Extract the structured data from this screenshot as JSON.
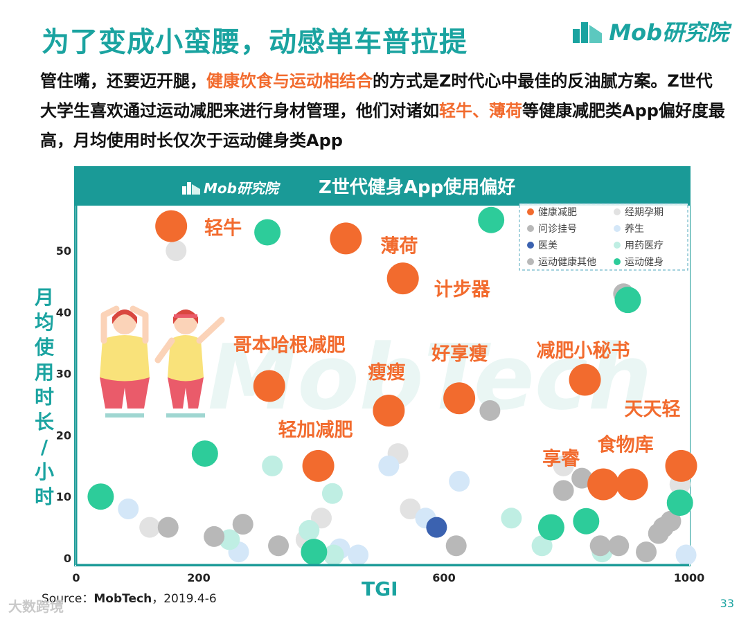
{
  "page": {
    "title": "为了变成小蛮腰，动感单车普拉提",
    "logo_text": "Mob研究院",
    "desc_parts": [
      {
        "text": "管住嘴，还要迈开腿，",
        "highlight": false
      },
      {
        "text": "健康饮食与运动相结合",
        "highlight": true
      },
      {
        "text": "的方式是Z时代心中最佳的反油腻方案。Z世代大学生喜欢通过运动减肥来进行身材管理，他们对诸如",
        "highlight": false
      },
      {
        "text": "轻牛、薄荷",
        "highlight": true
      },
      {
        "text": "等健康减肥类App偏好度最高，月均使用时长仅次于运动健身类App",
        "highlight": false
      }
    ],
    "source_label": "Source：",
    "source_name": "MobTech",
    "source_date": "，2019.4-6",
    "page_number": "33",
    "corner_watermark": "大数跨境",
    "chart_watermark": "MobTech"
  },
  "colors": {
    "teal": "#1a9a97",
    "orange": "#f26b2e",
    "gray": "#b8b8b8",
    "lightgray": "#e2e2e2",
    "lightblue": "#d4e7f8",
    "darkblue": "#3b62b0",
    "mint": "#bfeee3",
    "green": "#2dcc9a"
  },
  "chart_data": {
    "type": "scatter",
    "title": "Z世代健身App使用偏好",
    "header_logo": "Mob研究院",
    "xlabel": "TGI",
    "ylabel": "月均使用时长/小时",
    "xlim": [
      0,
      1000
    ],
    "ylim": [
      0,
      57
    ],
    "xticks": [
      0,
      200,
      400,
      600,
      800,
      1000
    ],
    "xtick_labels": [
      "0",
      "200",
      "",
      "600",
      "",
      "1000"
    ],
    "yticks": [
      0,
      10,
      20,
      30,
      40,
      50
    ],
    "legend": [
      {
        "name": "健康减肥",
        "color": "#f26b2e"
      },
      {
        "name": "经期孕期",
        "color": "#e2e2e2"
      },
      {
        "name": "问诊挂号",
        "color": "#b8b8b8"
      },
      {
        "name": "养生",
        "color": "#d4e7f8"
      },
      {
        "name": "医美",
        "color": "#3b62b0"
      },
      {
        "name": "用药医疗",
        "color": "#bfeee3"
      },
      {
        "name": "运动健康其他",
        "color": "#b8b8b8"
      },
      {
        "name": "运动健身",
        "color": "#2dcc9a"
      }
    ],
    "labeled_points": [
      {
        "name": "轻牛",
        "x": 155,
        "y": 54
      },
      {
        "name": "薄荷",
        "x": 440,
        "y": 52
      },
      {
        "name": "计步器",
        "x": 533,
        "y": 45.5
      },
      {
        "name": "减肥小秘书",
        "x": 830,
        "y": 29
      },
      {
        "name": "哥本哈根减肥",
        "x": 315,
        "y": 28
      },
      {
        "name": "瘦瘦",
        "x": 510,
        "y": 24
      },
      {
        "name": "好享瘦",
        "x": 625,
        "y": 26
      },
      {
        "name": "天天轻",
        "x": 987,
        "y": 15
      },
      {
        "name": "轻加减肥",
        "x": 395,
        "y": 15
      },
      {
        "name": "享睿",
        "x": 860,
        "y": 12
      },
      {
        "name": "食物库",
        "x": 907,
        "y": 12
      }
    ],
    "points": [
      {
        "category": "健康减肥",
        "x": 155,
        "y": 54
      },
      {
        "category": "健康减肥",
        "x": 440,
        "y": 52
      },
      {
        "category": "健康减肥",
        "x": 533,
        "y": 45.5
      },
      {
        "category": "健康减肥",
        "x": 830,
        "y": 29
      },
      {
        "category": "健康减肥",
        "x": 315,
        "y": 28
      },
      {
        "category": "健康减肥",
        "x": 510,
        "y": 24
      },
      {
        "category": "健康减肥",
        "x": 625,
        "y": 26
      },
      {
        "category": "健康减肥",
        "x": 987,
        "y": 15
      },
      {
        "category": "健康减肥",
        "x": 395,
        "y": 15
      },
      {
        "category": "健康减肥",
        "x": 860,
        "y": 12
      },
      {
        "category": "健康减肥",
        "x": 907,
        "y": 12
      },
      {
        "category": "经期孕期",
        "x": 163,
        "y": 50
      },
      {
        "category": "经期孕期",
        "x": 525,
        "y": 17
      },
      {
        "category": "经期孕期",
        "x": 795,
        "y": 15
      },
      {
        "category": "经期孕期",
        "x": 985,
        "y": 12
      },
      {
        "category": "经期孕期",
        "x": 400,
        "y": 6.5
      },
      {
        "category": "经期孕期",
        "x": 545,
        "y": 8
      },
      {
        "category": "经期孕期",
        "x": 120,
        "y": 5
      },
      {
        "category": "经期孕期",
        "x": 375,
        "y": 3
      },
      {
        "category": "问诊挂号",
        "x": 893,
        "y": 43
      },
      {
        "category": "问诊挂号",
        "x": 675,
        "y": 24
      },
      {
        "category": "问诊挂号",
        "x": 825,
        "y": 13
      },
      {
        "category": "问诊挂号",
        "x": 795,
        "y": 11
      },
      {
        "category": "问诊挂号",
        "x": 150,
        "y": 5
      },
      {
        "category": "问诊挂号",
        "x": 225,
        "y": 3.5
      },
      {
        "category": "问诊挂号",
        "x": 272,
        "y": 5.5
      },
      {
        "category": "问诊挂号",
        "x": 330,
        "y": 2
      },
      {
        "category": "问诊挂号",
        "x": 620,
        "y": 2
      },
      {
        "category": "问诊挂号",
        "x": 855,
        "y": 2
      },
      {
        "category": "问诊挂号",
        "x": 885,
        "y": 2
      },
      {
        "category": "问诊挂号",
        "x": 950,
        "y": 4
      },
      {
        "category": "问诊挂号",
        "x": 970,
        "y": 6
      },
      {
        "category": "问诊挂号",
        "x": 930,
        "y": 1
      },
      {
        "category": "问诊挂号",
        "x": 958,
        "y": 5
      },
      {
        "category": "养生",
        "x": 85,
        "y": 8
      },
      {
        "category": "养生",
        "x": 510,
        "y": 15
      },
      {
        "category": "养生",
        "x": 625,
        "y": 12.5
      },
      {
        "category": "养生",
        "x": 570,
        "y": 6.5
      },
      {
        "category": "养生",
        "x": 265,
        "y": 1
      },
      {
        "category": "养生",
        "x": 430,
        "y": 1.5
      },
      {
        "category": "养生",
        "x": 460,
        "y": 0.5
      },
      {
        "category": "养生",
        "x": 995,
        "y": 0.5
      },
      {
        "category": "医美",
        "x": 588,
        "y": 5
      },
      {
        "category": "用药医疗",
        "x": 320,
        "y": 15
      },
      {
        "category": "用药医疗",
        "x": 418,
        "y": 10.5
      },
      {
        "category": "用药医疗",
        "x": 710,
        "y": 6.5
      },
      {
        "category": "用药医疗",
        "x": 250,
        "y": 3
      },
      {
        "category": "用药医疗",
        "x": 380,
        "y": 4.5
      },
      {
        "category": "用药医疗",
        "x": 420,
        "y": 0.5
      },
      {
        "category": "用药医疗",
        "x": 760,
        "y": 2
      },
      {
        "category": "用药医疗",
        "x": 858,
        "y": 1
      },
      {
        "category": "运动健身",
        "x": 312,
        "y": 53
      },
      {
        "category": "运动健身",
        "x": 677,
        "y": 55
      },
      {
        "category": "运动健身",
        "x": 900,
        "y": 42
      },
      {
        "category": "运动健身",
        "x": 210,
        "y": 17
      },
      {
        "category": "运动健身",
        "x": 40,
        "y": 10
      },
      {
        "category": "运动健身",
        "x": 775,
        "y": 5
      },
      {
        "category": "运动健身",
        "x": 832,
        "y": 6
      },
      {
        "category": "运动健身",
        "x": 985,
        "y": 9
      },
      {
        "category": "运动健身",
        "x": 388,
        "y": 1
      }
    ]
  }
}
